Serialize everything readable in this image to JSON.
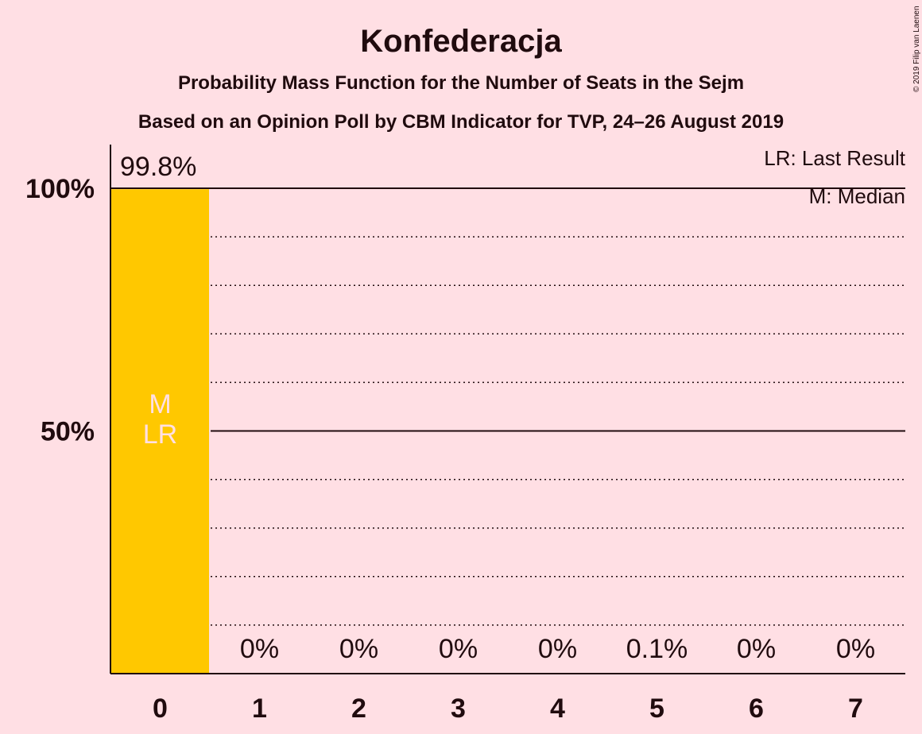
{
  "chart_data": {
    "type": "bar",
    "title": "Konfederacja",
    "subtitle": "Probability Mass Function for the Number of Seats in the Sejm",
    "subtitle2": "Based on an Opinion Poll by CBM Indicator for TVP, 24–26 August 2019",
    "copyright": "© 2019 Filip van Laenen",
    "categories": [
      "0",
      "1",
      "2",
      "3",
      "4",
      "5",
      "6",
      "7"
    ],
    "values": [
      99.8,
      0,
      0,
      0,
      0,
      0.1,
      0,
      0
    ],
    "value_labels": [
      "99.8%",
      "0%",
      "0%",
      "0%",
      "0%",
      "0.1%",
      "0%",
      "0%"
    ],
    "ylim": [
      0,
      100
    ],
    "yticks": [
      {
        "value": 50,
        "label": "50%"
      },
      {
        "value": 100,
        "label": "100%"
      }
    ],
    "minor_grid_step": 10,
    "bar_color": "#ffc800",
    "bar_marker_text": [
      "M",
      "LR"
    ],
    "legend": [
      "LR: Last Result",
      "M: Median"
    ],
    "legend_position": "top-right",
    "grid": true
  }
}
